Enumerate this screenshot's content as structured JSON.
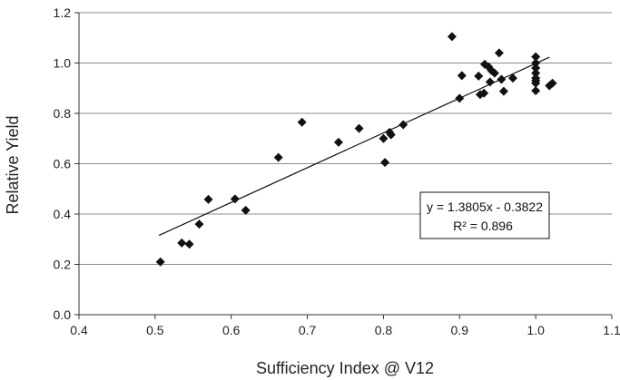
{
  "chart_data": {
    "type": "scatter",
    "xlabel": "Sufficiency Index @ V12",
    "ylabel": "Relative Yield",
    "xlim": [
      0.4,
      1.1
    ],
    "ylim": [
      0.0,
      1.2
    ],
    "x_ticks": [
      "0.4",
      "0.5",
      "0.6",
      "0.7",
      "0.8",
      "0.9",
      "1.0",
      "1.1"
    ],
    "y_ticks": [
      "0.0",
      "0.2",
      "0.4",
      "0.6",
      "0.8",
      "1.0",
      "1.2"
    ],
    "grid": "horizontal",
    "marker": "diamond",
    "point_color": "#111111",
    "points": [
      [
        0.507,
        0.21
      ],
      [
        0.535,
        0.285
      ],
      [
        0.545,
        0.28
      ],
      [
        0.558,
        0.36
      ],
      [
        0.57,
        0.458
      ],
      [
        0.605,
        0.46
      ],
      [
        0.619,
        0.415
      ],
      [
        0.662,
        0.625
      ],
      [
        0.693,
        0.765
      ],
      [
        0.741,
        0.685
      ],
      [
        0.768,
        0.74
      ],
      [
        0.8,
        0.7
      ],
      [
        0.802,
        0.605
      ],
      [
        0.808,
        0.725
      ],
      [
        0.81,
        0.715
      ],
      [
        0.826,
        0.755
      ],
      [
        0.89,
        1.105
      ],
      [
        0.9,
        0.86
      ],
      [
        0.903,
        0.95
      ],
      [
        0.925,
        0.948
      ],
      [
        0.927,
        0.875
      ],
      [
        0.932,
        0.88
      ],
      [
        0.933,
        0.995
      ],
      [
        0.938,
        0.985
      ],
      [
        0.94,
        0.925
      ],
      [
        0.942,
        0.97
      ],
      [
        0.946,
        0.96
      ],
      [
        0.952,
        1.04
      ],
      [
        0.955,
        0.935
      ],
      [
        0.958,
        0.888
      ],
      [
        0.97,
        0.94
      ],
      [
        1.0,
        1.025
      ],
      [
        1.0,
        1.0
      ],
      [
        1.0,
        0.98
      ],
      [
        1.0,
        0.96
      ],
      [
        1.0,
        0.94
      ],
      [
        1.0,
        0.93
      ],
      [
        1.0,
        0.92
      ],
      [
        1.0,
        0.89
      ],
      [
        1.018,
        0.91
      ],
      [
        1.022,
        0.92
      ]
    ],
    "trendline": {
      "slope": 1.3805,
      "intercept": -0.3822,
      "x_range": [
        0.505,
        1.018
      ],
      "equation": "y = 1.3805x - 0.3822",
      "r_squared": "R² = 0.896"
    }
  }
}
